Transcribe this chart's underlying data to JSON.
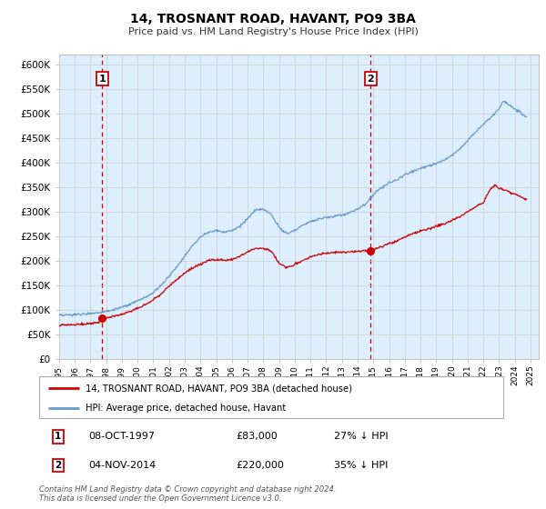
{
  "title": "14, TROSNANT ROAD, HAVANT, PO9 3BA",
  "subtitle": "Price paid vs. HM Land Registry's House Price Index (HPI)",
  "legend_line1": "14, TROSNANT ROAD, HAVANT, PO9 3BA (detached house)",
  "legend_line2": "HPI: Average price, detached house, Havant",
  "annotation1_date": "08-OCT-1997",
  "annotation1_price": "£83,000",
  "annotation1_hpi": "27% ↓ HPI",
  "annotation2_date": "04-NOV-2014",
  "annotation2_price": "£220,000",
  "annotation2_hpi": "35% ↓ HPI",
  "footnote": "Contains HM Land Registry data © Crown copyright and database right 2024.\nThis data is licensed under the Open Government Licence v3.0.",
  "red_line_color": "#cc0000",
  "blue_line_color": "#6699cc",
  "blue_fill_color": "#ddeeff",
  "marker_color": "#cc0000",
  "dashed_line_color": "#cc0000",
  "grid_color": "#cccccc",
  "background_color": "#ffffff",
  "annotation_box_color": "#cc0000",
  "sale1_x": 1997.75,
  "sale1_y": 83000,
  "sale2_x": 2014.833,
  "sale2_y": 220000,
  "ylim_min": 0,
  "ylim_max": 620000,
  "yticks": [
    0,
    50000,
    100000,
    150000,
    200000,
    250000,
    300000,
    350000,
    400000,
    450000,
    500000,
    550000,
    600000
  ],
  "xlim_start": 1995.0,
  "xlim_end": 2025.5,
  "hpi_anchors": [
    [
      1995.0,
      88000
    ],
    [
      1995.5,
      89000
    ],
    [
      1996.0,
      90000
    ],
    [
      1996.5,
      91000
    ],
    [
      1997.0,
      93000
    ],
    [
      1997.5,
      94000
    ],
    [
      1998.0,
      97000
    ],
    [
      1998.5,
      100000
    ],
    [
      1999.0,
      105000
    ],
    [
      1999.5,
      110000
    ],
    [
      2000.0,
      118000
    ],
    [
      2000.5,
      125000
    ],
    [
      2001.0,
      135000
    ],
    [
      2001.5,
      150000
    ],
    [
      2002.0,
      168000
    ],
    [
      2002.5,
      188000
    ],
    [
      2003.0,
      210000
    ],
    [
      2003.5,
      230000
    ],
    [
      2004.0,
      248000
    ],
    [
      2004.5,
      258000
    ],
    [
      2005.0,
      262000
    ],
    [
      2005.5,
      258000
    ],
    [
      2006.0,
      262000
    ],
    [
      2006.5,
      270000
    ],
    [
      2007.0,
      285000
    ],
    [
      2007.5,
      303000
    ],
    [
      2008.0,
      305000
    ],
    [
      2008.5,
      295000
    ],
    [
      2009.0,
      268000
    ],
    [
      2009.5,
      255000
    ],
    [
      2010.0,
      262000
    ],
    [
      2010.5,
      272000
    ],
    [
      2011.0,
      280000
    ],
    [
      2011.5,
      285000
    ],
    [
      2012.0,
      288000
    ],
    [
      2012.5,
      290000
    ],
    [
      2013.0,
      293000
    ],
    [
      2013.5,
      298000
    ],
    [
      2014.0,
      305000
    ],
    [
      2014.5,
      315000
    ],
    [
      2015.0,
      335000
    ],
    [
      2015.5,
      348000
    ],
    [
      2016.0,
      358000
    ],
    [
      2016.5,
      365000
    ],
    [
      2017.0,
      375000
    ],
    [
      2017.5,
      382000
    ],
    [
      2018.0,
      388000
    ],
    [
      2018.5,
      393000
    ],
    [
      2019.0,
      398000
    ],
    [
      2019.5,
      405000
    ],
    [
      2020.0,
      415000
    ],
    [
      2020.5,
      428000
    ],
    [
      2021.0,
      445000
    ],
    [
      2021.5,
      462000
    ],
    [
      2022.0,
      478000
    ],
    [
      2022.5,
      492000
    ],
    [
      2023.0,
      510000
    ],
    [
      2023.25,
      525000
    ],
    [
      2023.5,
      522000
    ],
    [
      2023.75,
      515000
    ],
    [
      2024.0,
      508000
    ],
    [
      2024.25,
      505000
    ],
    [
      2024.5,
      498000
    ],
    [
      2024.75,
      492000
    ]
  ],
  "red_anchors": [
    [
      1995.0,
      68000
    ],
    [
      1995.5,
      69000
    ],
    [
      1996.0,
      70000
    ],
    [
      1996.5,
      71000
    ],
    [
      1997.0,
      72000
    ],
    [
      1997.5,
      74000
    ],
    [
      1997.75,
      83000
    ],
    [
      1998.0,
      84000
    ],
    [
      1998.5,
      87000
    ],
    [
      1999.0,
      91000
    ],
    [
      1999.5,
      96000
    ],
    [
      2000.0,
      103000
    ],
    [
      2000.5,
      110000
    ],
    [
      2001.0,
      120000
    ],
    [
      2001.5,
      133000
    ],
    [
      2002.0,
      148000
    ],
    [
      2002.5,
      162000
    ],
    [
      2003.0,
      175000
    ],
    [
      2003.5,
      185000
    ],
    [
      2004.0,
      193000
    ],
    [
      2004.5,
      200000
    ],
    [
      2005.0,
      202000
    ],
    [
      2005.5,
      200000
    ],
    [
      2006.0,
      202000
    ],
    [
      2006.5,
      208000
    ],
    [
      2007.0,
      218000
    ],
    [
      2007.5,
      225000
    ],
    [
      2008.0,
      225000
    ],
    [
      2008.5,
      220000
    ],
    [
      2009.0,
      195000
    ],
    [
      2009.5,
      185000
    ],
    [
      2010.0,
      192000
    ],
    [
      2010.5,
      200000
    ],
    [
      2011.0,
      208000
    ],
    [
      2011.5,
      213000
    ],
    [
      2012.0,
      215000
    ],
    [
      2012.5,
      216000
    ],
    [
      2013.0,
      217000
    ],
    [
      2013.5,
      218000
    ],
    [
      2014.0,
      219000
    ],
    [
      2014.5,
      220000
    ],
    [
      2014.833,
      220000
    ],
    [
      2015.0,
      222000
    ],
    [
      2015.5,
      228000
    ],
    [
      2016.0,
      235000
    ],
    [
      2016.5,
      240000
    ],
    [
      2017.0,
      248000
    ],
    [
      2017.5,
      255000
    ],
    [
      2018.0,
      260000
    ],
    [
      2018.5,
      265000
    ],
    [
      2019.0,
      270000
    ],
    [
      2019.5,
      275000
    ],
    [
      2020.0,
      282000
    ],
    [
      2020.5,
      290000
    ],
    [
      2021.0,
      300000
    ],
    [
      2021.5,
      310000
    ],
    [
      2022.0,
      318000
    ],
    [
      2022.25,
      335000
    ],
    [
      2022.5,
      348000
    ],
    [
      2022.75,
      352000
    ],
    [
      2023.0,
      348000
    ],
    [
      2023.25,
      345000
    ],
    [
      2023.5,
      342000
    ],
    [
      2023.75,
      338000
    ],
    [
      2024.0,
      335000
    ],
    [
      2024.25,
      332000
    ],
    [
      2024.5,
      328000
    ],
    [
      2024.75,
      325000
    ]
  ]
}
